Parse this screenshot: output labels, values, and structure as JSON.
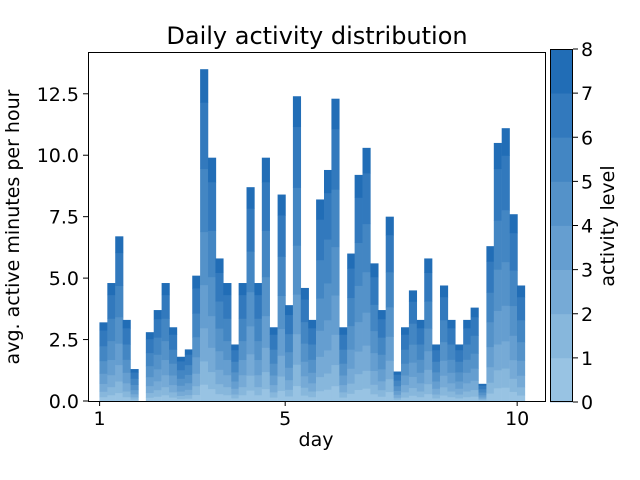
{
  "chart_data": {
    "type": "bar",
    "stacked": true,
    "title": "Daily activity distribution",
    "xlabel": "day",
    "ylabel": "avg. active minutes per hour",
    "xlim": [
      0.75,
      10.6
    ],
    "ylim": [
      0,
      14.2
    ],
    "xticks": [
      {
        "value": 1,
        "label": "1"
      },
      {
        "value": 5,
        "label": "5"
      },
      {
        "value": 10,
        "label": "10"
      }
    ],
    "yticks": [
      {
        "value": 0.0,
        "label": "0.0"
      },
      {
        "value": 2.5,
        "label": "2.5"
      },
      {
        "value": 5.0,
        "label": "5.0"
      },
      {
        "value": 7.5,
        "label": "7.5"
      },
      {
        "value": 10.0,
        "label": "10.0"
      },
      {
        "value": 12.5,
        "label": "12.5"
      }
    ],
    "bin_width": 0.1667,
    "x": [
      1.08,
      1.25,
      1.42,
      1.58,
      1.75,
      2.08,
      2.25,
      2.42,
      2.58,
      2.75,
      2.92,
      3.08,
      3.25,
      3.42,
      3.58,
      3.75,
      3.92,
      4.08,
      4.25,
      4.42,
      4.58,
      4.75,
      4.92,
      5.08,
      5.25,
      5.42,
      5.58,
      5.75,
      5.92,
      6.08,
      6.25,
      6.42,
      6.58,
      6.75,
      6.92,
      7.08,
      7.25,
      7.42,
      7.58,
      7.75,
      7.92,
      8.08,
      8.25,
      8.42,
      8.58,
      8.75,
      8.92,
      9.08,
      9.25,
      9.42,
      9.58,
      9.75,
      9.92,
      10.08
    ],
    "totals": [
      3.2,
      4.8,
      6.7,
      3.3,
      1.3,
      2.8,
      3.7,
      4.8,
      3.0,
      1.8,
      2.1,
      5.1,
      13.5,
      9.9,
      5.8,
      4.8,
      2.3,
      4.8,
      8.7,
      4.8,
      9.9,
      3.0,
      8.4,
      3.9,
      12.4,
      4.6,
      3.3,
      8.2,
      9.4,
      12.3,
      3.0,
      6.0,
      9.2,
      10.3,
      5.6,
      3.7,
      7.5,
      1.2,
      3.0,
      4.5,
      3.3,
      5.8,
      2.3,
      4.7,
      3.3,
      2.3,
      3.3,
      3.8,
      0.7,
      6.3,
      10.5,
      11.1,
      7.6,
      4.7
    ],
    "colorbar": {
      "label": "activity level",
      "range": [
        0,
        8
      ],
      "ticks": [
        0,
        1,
        2,
        3,
        4,
        5,
        6,
        7,
        8
      ],
      "colors": [
        "#a0c9e6",
        "#1967b3"
      ]
    }
  }
}
